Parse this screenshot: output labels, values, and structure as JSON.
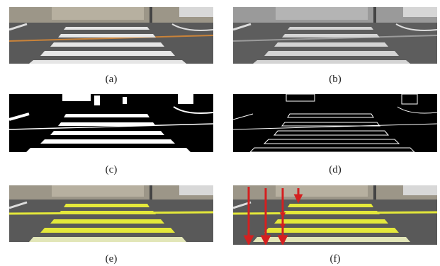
{
  "figure": {
    "panels": [
      {
        "id": "a",
        "caption": "(a)",
        "kind": "color"
      },
      {
        "id": "b",
        "caption": "(b)",
        "kind": "gray"
      },
      {
        "id": "c",
        "caption": "(c)",
        "kind": "binary"
      },
      {
        "id": "d",
        "caption": "(d)",
        "kind": "edges"
      },
      {
        "id": "e",
        "caption": "(e)",
        "kind": "detected"
      },
      {
        "id": "f",
        "caption": "(f)",
        "kind": "arrows"
      }
    ]
  },
  "colors": {
    "asphalt": "#5d5d5d",
    "sky_wall": "#9a9588",
    "stripe": "#e6e6e6",
    "gray_stripe": "#d4d4d4",
    "lane_orange": "#c9833a",
    "highlight": "#e4e83a",
    "arrow": "#d42020"
  }
}
